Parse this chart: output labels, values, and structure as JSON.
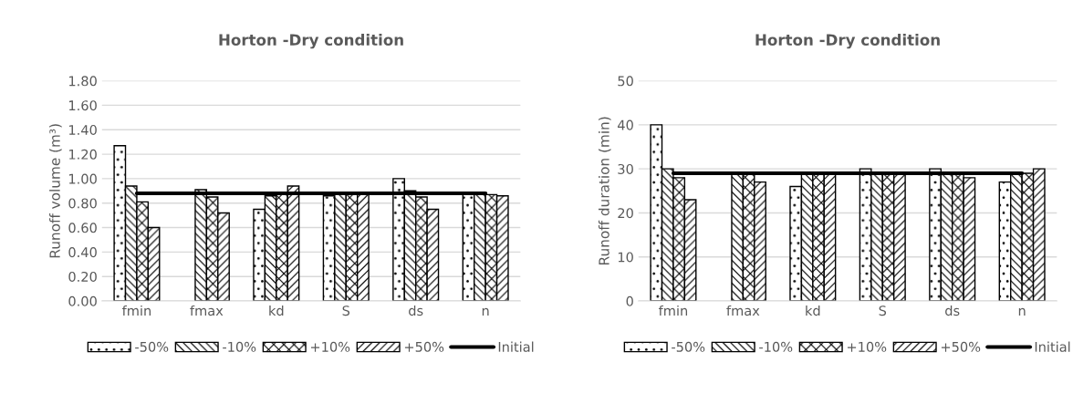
{
  "chart_data": [
    {
      "type": "bar",
      "title": "Horton -Dry condition",
      "ylabel": "Runoff volume (m³)",
      "categories": [
        "fmin",
        "fmax",
        "kd",
        "S",
        "ds",
        "n"
      ],
      "ylim": [
        0,
        1.8
      ],
      "yticks": [
        {
          "value": 0,
          "label": "0.00"
        },
        {
          "value": 0.2,
          "label": "0.20"
        },
        {
          "value": 0.4,
          "label": "0.40"
        },
        {
          "value": 0.6,
          "label": "0.60"
        },
        {
          "value": 0.8,
          "label": "0.80"
        },
        {
          "value": 1.0,
          "label": "1.00"
        },
        {
          "value": 1.2,
          "label": "1.20"
        },
        {
          "value": 1.4,
          "label": "1.40"
        },
        {
          "value": 1.6,
          "label": "1.60"
        },
        {
          "value": 1.8,
          "label": "1.80"
        }
      ],
      "grid": "y",
      "legend": "bottom",
      "series": [
        {
          "name": "-50%",
          "color": "#000000",
          "values": [
            1.27,
            null,
            0.75,
            0.86,
            1.0,
            0.89
          ]
        },
        {
          "name": "-10%",
          "color": "#000000",
          "values": [
            0.94,
            0.91,
            0.86,
            0.87,
            0.9,
            0.88
          ]
        },
        {
          "name": "+10%",
          "color": "#000000",
          "values": [
            0.81,
            0.85,
            0.89,
            0.87,
            0.85,
            0.87
          ]
        },
        {
          "name": "+50%",
          "color": "#000000",
          "values": [
            0.6,
            0.72,
            0.94,
            0.87,
            0.75,
            0.86
          ]
        },
        {
          "name": "Initial",
          "type": "line",
          "color": "#000000",
          "values": [
            0.88,
            0.88,
            0.88,
            0.88,
            0.88,
            0.88
          ]
        }
      ]
    },
    {
      "type": "bar",
      "title": "Horton -Dry condition",
      "ylabel": "Runoff duration (min)",
      "categories": [
        "fmin",
        "fmax",
        "kd",
        "S",
        "ds",
        "n"
      ],
      "ylim": [
        0,
        50
      ],
      "yticks": [
        0,
        10,
        20,
        30,
        40,
        50
      ],
      "grid": "y",
      "legend": "bottom",
      "series": [
        {
          "name": "-50%",
          "color": "#000000",
          "values": [
            40,
            null,
            26,
            30,
            30,
            27
          ]
        },
        {
          "name": "-10%",
          "color": "#000000",
          "values": [
            30,
            29,
            29,
            29,
            29,
            29
          ]
        },
        {
          "name": "+10%",
          "color": "#000000",
          "values": [
            28,
            29,
            29,
            29,
            29,
            29
          ]
        },
        {
          "name": "+50%",
          "color": "#000000",
          "values": [
            23,
            27,
            29,
            29,
            28,
            30
          ]
        },
        {
          "name": "Initial",
          "type": "line",
          "color": "#000000",
          "values": [
            29,
            29,
            29,
            29,
            29,
            29
          ]
        }
      ]
    }
  ]
}
